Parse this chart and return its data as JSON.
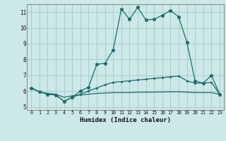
{
  "title": "",
  "xlabel": "Humidex (Indice chaleur)",
  "ylabel": "",
  "xlim": [
    -0.5,
    23.5
  ],
  "ylim": [
    4.8,
    11.5
  ],
  "background_color": "#cce8e8",
  "grid_color": "#aacccc",
  "line_color": "#1a6b6b",
  "line1_x": [
    0,
    1,
    2,
    3,
    4,
    5,
    6,
    7,
    8,
    9,
    10,
    11,
    12,
    13,
    14,
    15,
    16,
    17,
    18,
    19,
    20,
    21,
    22,
    23
  ],
  "line1_y": [
    6.2,
    5.95,
    5.8,
    5.75,
    5.35,
    5.6,
    6.0,
    6.25,
    7.7,
    7.75,
    8.6,
    11.2,
    10.55,
    11.3,
    10.5,
    10.55,
    10.8,
    11.1,
    10.7,
    9.1,
    6.65,
    6.5,
    7.0,
    5.8
  ],
  "line2_x": [
    0,
    1,
    2,
    3,
    4,
    5,
    6,
    7,
    8,
    9,
    10,
    11,
    12,
    13,
    14,
    15,
    16,
    17,
    18,
    19,
    20,
    21,
    22,
    23
  ],
  "line2_y": [
    6.2,
    5.95,
    5.8,
    5.75,
    5.35,
    5.6,
    5.8,
    6.0,
    6.2,
    6.4,
    6.55,
    6.6,
    6.65,
    6.7,
    6.75,
    6.8,
    6.85,
    6.9,
    6.95,
    6.65,
    6.5,
    6.5,
    6.55,
    5.8
  ],
  "line3_x": [
    0,
    1,
    2,
    3,
    4,
    5,
    6,
    7,
    8,
    9,
    10,
    11,
    12,
    13,
    14,
    15,
    16,
    17,
    18,
    19,
    20,
    21,
    22,
    23
  ],
  "line3_y": [
    6.2,
    5.95,
    5.85,
    5.8,
    5.6,
    5.7,
    5.75,
    5.8,
    5.85,
    5.87,
    5.9,
    5.9,
    5.9,
    5.92,
    5.93,
    5.93,
    5.94,
    5.95,
    5.95,
    5.93,
    5.9,
    5.9,
    5.9,
    5.8
  ],
  "xticks": [
    0,
    1,
    2,
    3,
    4,
    5,
    6,
    7,
    8,
    9,
    10,
    11,
    12,
    13,
    14,
    15,
    16,
    17,
    18,
    19,
    20,
    21,
    22,
    23
  ],
  "yticks": [
    5,
    6,
    7,
    8,
    9,
    10,
    11
  ]
}
